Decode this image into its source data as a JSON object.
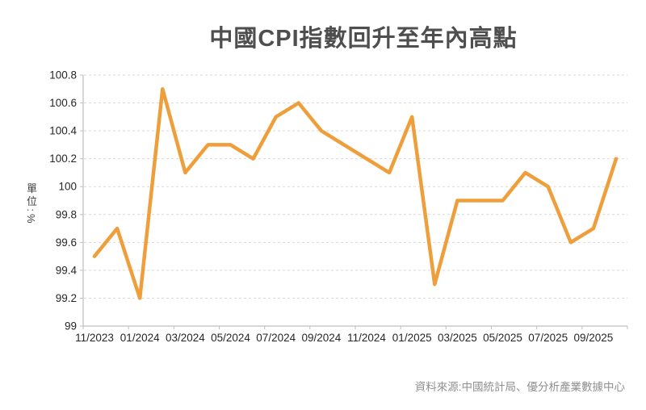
{
  "header": {
    "title": "中國CPI指數回升至年內高點"
  },
  "footer": {
    "source_note": "資料來源:中國統計局、優分析產業數據中心"
  },
  "colors": {
    "line": "#EE9F3C",
    "grid": "#D9D9D9",
    "axis": "#BFBFBF",
    "tick_label": "#262626",
    "title": "#4E4E4E",
    "source": "#8F8F8F",
    "y_title": "#3D3D3D",
    "background": "#FFFFFF"
  },
  "chart_data": {
    "type": "line",
    "title": "中國CPI指數回升至年內高點",
    "ylabel": "單位:%",
    "xlabel": "",
    "x": [
      "11/2023",
      "12/2023",
      "01/2024",
      "02/2024",
      "03/2024",
      "04/2024",
      "05/2024",
      "06/2024",
      "07/2024",
      "08/2024",
      "09/2024",
      "10/2024",
      "11/2024",
      "12/2024",
      "01/2025",
      "02/2025",
      "03/2025",
      "04/2025",
      "05/2025",
      "06/2025",
      "07/2025",
      "08/2025",
      "09/2025",
      "10/2025"
    ],
    "values": [
      99.5,
      99.7,
      99.2,
      100.7,
      100.1,
      100.3,
      100.3,
      100.2,
      100.5,
      100.6,
      100.4,
      100.3,
      100.2,
      100.1,
      100.5,
      99.3,
      99.9,
      99.9,
      99.9,
      100.1,
      100.0,
      99.6,
      99.7,
      100.2
    ],
    "ylim": [
      99,
      100.8
    ],
    "y_ticks": [
      100.8,
      100.6,
      100.4,
      100.2,
      100,
      99.8,
      99.6,
      99.4,
      99.2,
      99
    ],
    "y_tick_labels": [
      "100.8",
      "100.6",
      "100.4",
      "100.2",
      "100",
      "99.8",
      "99.6",
      "99.4",
      "99.2",
      "99"
    ],
    "x_tick_labels": [
      "11/2023",
      "01/2024",
      "03/2024",
      "05/2024",
      "07/2024",
      "09/2024",
      "11/2024",
      "01/2025",
      "03/2025",
      "05/2025",
      "07/2025",
      "09/2025"
    ],
    "x_label_every": 2,
    "grid": "horizontal-dashed",
    "legend": "none",
    "markers": "none",
    "line_width": 4.5
  }
}
